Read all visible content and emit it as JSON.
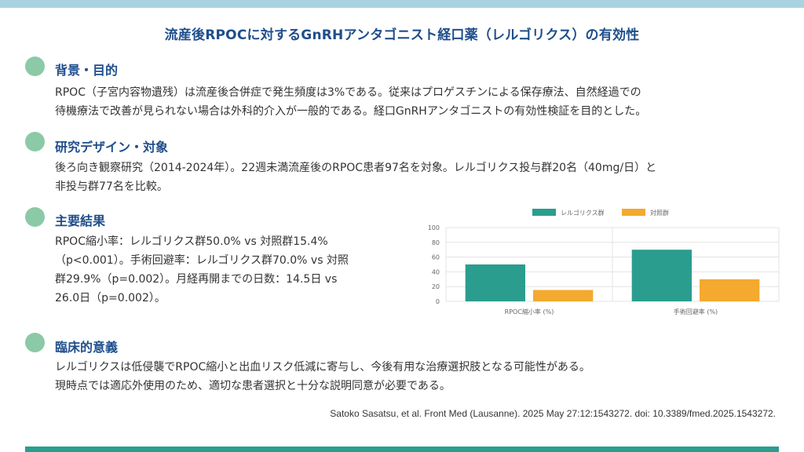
{
  "title": "流産後RPOCに対するGnRHアンタゴニスト経口薬（レルゴリクス）の有効性",
  "sections": [
    {
      "heading": "背景・目的",
      "lines": [
        "RPOC（子宮内容物遺残）は流産後合併症で発生頻度は3%である。従来はプロゲスチンによる保存療法、自然経過での",
        "待機療法で改善が見られない場合は外科的介入が一般的である。経口GnRHアンタゴニストの有効性検証を目的とした。"
      ]
    },
    {
      "heading": "研究デザイン・対象",
      "lines": [
        "後ろ向き観察研究（2014-2024年）。22週未満流産後のRPOC患者97名を対象。レルゴリクス投与群20名（40mg/日）と",
        "非投与群77名を比較。"
      ]
    },
    {
      "heading": "主要結果",
      "lines": [
        "RPOC縮小率：レルゴリクス群50.0% vs 対照群15.4%",
        "（p<0.001）。手術回避率：レルゴリクス群70.0% vs 対照",
        "群29.9%（p=0.002）。月経再開までの日数：14.5日 vs",
        "26.0日（p=0.002）。"
      ]
    },
    {
      "heading": "臨床的意義",
      "lines": [
        "レルゴリクスは低侵襲でRPOC縮小と出血リスク低減に寄与し、今後有用な治療選択肢となる可能性がある。",
        "現時点では適応外使用のため、適切な患者選択と十分な説明同意が必要である。"
      ]
    }
  ],
  "citation": "Satoko Sasatsu, et al. Front Med (Lausanne). 2025 May 27:12:1543272.  doi: 10.3389/fmed.2025.1543272.",
  "chart_data": {
    "type": "bar",
    "categories": [
      "RPOC縮小率 (%)",
      "手術回避率 (%)"
    ],
    "series": [
      {
        "name": "レルゴリクス群",
        "values": [
          50.0,
          70.0
        ],
        "color": "#2a9d8f"
      },
      {
        "name": "対照群",
        "values": [
          15.4,
          29.9
        ],
        "color": "#f4a92f"
      }
    ],
    "ylim": [
      0,
      100
    ],
    "yticks": [
      0,
      20,
      40,
      60,
      80,
      100
    ],
    "grid": true,
    "legend": "top-center"
  },
  "colors": {
    "title": "#1f4e8c",
    "accent_dot": "#8cc9a6",
    "top_bar": "#a9d3e1",
    "bottom_bar": "#2a9d8f"
  }
}
